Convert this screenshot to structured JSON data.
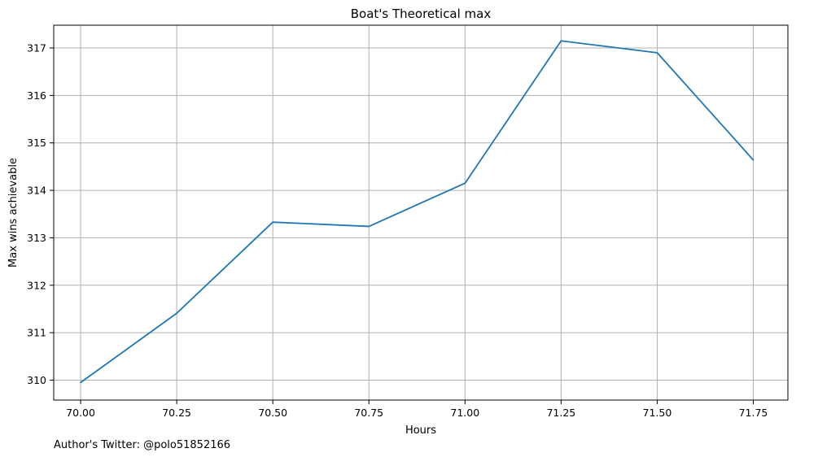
{
  "chart_data": {
    "type": "line",
    "title": "Boat's Theoretical max",
    "xlabel": "Hours",
    "ylabel": "Max wins achievable",
    "footnote": "Author's Twitter: @polo51852166",
    "xlim": [
      69.93,
      71.84
    ],
    "ylim": [
      309.58,
      317.48
    ],
    "grid": true,
    "x_ticks": [
      70.0,
      70.25,
      70.5,
      70.75,
      71.0,
      71.25,
      71.5,
      71.75
    ],
    "x_tick_labels": [
      "70.00",
      "70.25",
      "70.50",
      "70.75",
      "71.00",
      "71.25",
      "71.50",
      "71.75"
    ],
    "y_ticks": [
      310,
      311,
      312,
      313,
      314,
      315,
      316,
      317
    ],
    "y_tick_labels": [
      "310",
      "311",
      "312",
      "313",
      "314",
      "315",
      "316",
      "317"
    ],
    "series": [
      {
        "color": "#1f77b4",
        "x": [
          70.0,
          70.25,
          70.5,
          70.75,
          71.0,
          71.25,
          71.5,
          71.75
        ],
        "y": [
          309.95,
          311.41,
          313.33,
          313.24,
          314.15,
          317.15,
          316.9,
          314.64
        ]
      }
    ]
  }
}
